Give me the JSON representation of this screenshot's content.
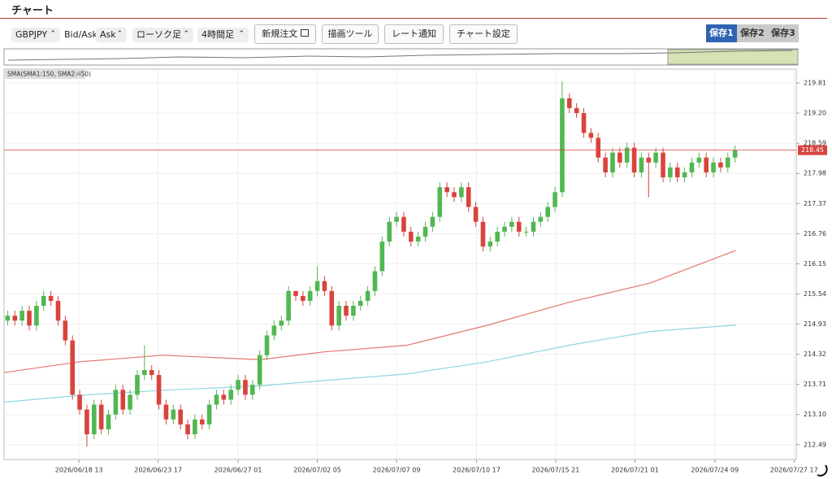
{
  "header": {
    "title": "チャート"
  },
  "toolbar": {
    "symbol": "GBPJPY",
    "bid_ask_label": "Bid/Ask",
    "bid_ask": "Ask",
    "chart_kind": "ローソク足",
    "timeframe": "4時間足",
    "buttons": [
      "新規注文",
      "描画ツール",
      "レート通知",
      "チャート設定"
    ],
    "tabs": [
      "保存1",
      "保存2",
      "保存3"
    ]
  },
  "chart_data": {
    "type": "candlestick",
    "indicator_label": "SMA(SMA1:150, SMA2:450)",
    "up_color": "#52b752",
    "down_color": "#d9433d",
    "grid": true,
    "open": [
      215.0,
      215.1,
      215.0,
      215.2,
      214.9,
      215.3,
      215.5,
      215.4,
      215.0,
      214.6,
      213.5,
      213.2,
      212.7,
      213.3,
      212.8,
      213.1,
      213.6,
      213.2,
      213.5,
      213.9,
      214.0,
      213.9,
      213.3,
      213.0,
      213.2,
      212.9,
      212.7,
      213.0,
      212.9,
      213.3,
      213.5,
      213.4,
      213.6,
      213.8,
      213.5,
      213.7,
      214.3,
      214.7,
      214.9,
      215.0,
      215.6,
      215.5,
      215.4,
      215.6,
      215.8,
      215.6,
      214.9,
      215.3,
      215.1,
      215.3,
      215.4,
      215.6,
      216.0,
      216.6,
      217.0,
      217.1,
      216.8,
      216.6,
      216.7,
      216.9,
      217.1,
      217.7,
      217.6,
      217.5,
      217.7,
      217.3,
      217.0,
      216.5,
      216.6,
      216.8,
      216.9,
      217.0,
      216.8,
      216.8,
      217.0,
      217.1,
      217.3,
      217.6,
      219.5,
      219.3,
      219.2,
      218.8,
      218.7,
      218.3,
      218.0,
      218.4,
      218.2,
      218.5,
      218.0,
      218.3,
      218.2,
      218.4,
      217.9,
      218.1,
      217.9,
      218.0,
      218.2,
      218.3,
      218.0,
      218.2,
      218.1,
      218.3
    ],
    "high": [
      215.2,
      215.2,
      215.3,
      215.3,
      215.4,
      215.6,
      215.6,
      215.5,
      215.1,
      214.7,
      213.6,
      213.3,
      213.4,
      213.4,
      213.2,
      213.7,
      213.7,
      213.6,
      214.0,
      214.5,
      214.1,
      214.0,
      213.4,
      213.3,
      213.3,
      213.0,
      213.1,
      213.1,
      213.4,
      213.6,
      213.6,
      213.7,
      213.9,
      213.9,
      213.8,
      214.4,
      214.8,
      215.0,
      215.1,
      215.7,
      215.6,
      215.6,
      215.7,
      216.1,
      215.9,
      215.7,
      215.4,
      215.4,
      215.4,
      215.5,
      215.7,
      216.1,
      216.7,
      217.1,
      217.2,
      217.2,
      216.9,
      216.8,
      217.0,
      217.2,
      217.8,
      217.8,
      217.7,
      217.8,
      217.8,
      217.4,
      217.1,
      216.7,
      216.9,
      217.0,
      217.1,
      217.1,
      216.9,
      217.1,
      217.2,
      217.4,
      217.7,
      219.85,
      219.6,
      219.4,
      219.3,
      218.9,
      218.8,
      218.4,
      218.5,
      218.5,
      218.6,
      218.6,
      218.4,
      218.4,
      218.5,
      218.5,
      218.2,
      218.2,
      218.1,
      218.3,
      218.4,
      218.4,
      218.3,
      218.3,
      218.4,
      218.55
    ],
    "low": [
      214.9,
      214.9,
      214.9,
      214.8,
      214.8,
      215.2,
      215.3,
      214.9,
      214.5,
      213.4,
      213.1,
      212.45,
      212.6,
      212.7,
      212.7,
      213.0,
      213.1,
      213.1,
      213.4,
      213.8,
      213.8,
      213.2,
      212.9,
      212.9,
      212.8,
      212.6,
      212.6,
      212.8,
      212.8,
      213.2,
      213.3,
      213.3,
      213.5,
      213.4,
      213.4,
      213.6,
      214.2,
      214.6,
      214.8,
      214.9,
      215.4,
      215.3,
      215.3,
      215.5,
      215.5,
      214.8,
      214.8,
      215.0,
      215.0,
      215.2,
      215.3,
      215.5,
      215.9,
      216.5,
      216.9,
      216.7,
      216.5,
      216.5,
      216.6,
      216.8,
      217.0,
      217.5,
      217.4,
      217.4,
      217.2,
      216.9,
      216.4,
      216.4,
      216.5,
      216.7,
      216.8,
      216.7,
      216.7,
      216.7,
      216.9,
      217.0,
      217.2,
      217.5,
      219.2,
      219.1,
      218.7,
      218.6,
      218.2,
      217.9,
      217.9,
      218.1,
      218.1,
      217.9,
      217.9,
      217.5,
      218.1,
      217.8,
      217.8,
      217.8,
      217.8,
      217.9,
      218.1,
      217.9,
      217.9,
      218.0,
      218.0,
      218.2
    ],
    "close": [
      215.1,
      215.0,
      215.2,
      214.9,
      215.3,
      215.5,
      215.4,
      215.0,
      214.6,
      213.5,
      213.2,
      212.7,
      213.3,
      212.8,
      213.1,
      213.6,
      213.2,
      213.5,
      213.9,
      214.0,
      213.9,
      213.3,
      213.0,
      213.2,
      212.9,
      212.7,
      213.0,
      212.9,
      213.3,
      213.5,
      213.4,
      213.6,
      213.8,
      213.5,
      213.7,
      214.3,
      214.7,
      214.9,
      215.0,
      215.6,
      215.5,
      215.4,
      215.6,
      215.8,
      215.6,
      214.9,
      215.3,
      215.1,
      215.3,
      215.4,
      215.6,
      216.0,
      216.6,
      217.0,
      217.1,
      216.8,
      216.6,
      216.7,
      216.9,
      217.1,
      217.7,
      217.6,
      217.5,
      217.7,
      217.3,
      217.0,
      216.5,
      216.6,
      216.8,
      216.9,
      217.0,
      216.8,
      216.8,
      217.0,
      217.1,
      217.3,
      217.6,
      219.5,
      219.3,
      219.2,
      218.8,
      218.7,
      218.3,
      218.0,
      218.4,
      218.2,
      218.5,
      218.0,
      218.3,
      218.2,
      218.4,
      217.9,
      218.1,
      217.9,
      218.0,
      218.2,
      218.3,
      218.0,
      218.2,
      218.1,
      218.3,
      218.45
    ],
    "sma": [
      {
        "color": "#e4766c",
        "x": [
          -0.5,
          10.2,
          21.5,
          35.1,
          44.1,
          55.4,
          66.7,
          77.9,
          89.2,
          101.1
        ],
        "values": [
          213.95,
          214.17,
          214.3,
          214.21,
          214.37,
          214.5,
          214.91,
          215.37,
          215.76,
          216.42
        ]
      },
      {
        "color": "#8fd6e2",
        "x": [
          -0.5,
          10.2,
          21.5,
          35.1,
          44.1,
          55.4,
          66.7,
          77.9,
          89.2,
          101.1
        ],
        "values": [
          213.35,
          213.49,
          213.59,
          213.68,
          213.79,
          213.92,
          214.17,
          214.5,
          214.78,
          214.91
        ]
      }
    ],
    "last_price": 218.45,
    "last_price_color": "#d9433d",
    "xlim": [
      -0.5,
      109.5
    ],
    "xticks": [
      {
        "value": 9.9,
        "label": "2026/06/18 13"
      },
      {
        "value": 20.9,
        "label": "2026/06/23 17"
      },
      {
        "value": 32.0,
        "label": "2026/06/27 01"
      },
      {
        "value": 43.0,
        "label": "2026/07/02 05"
      },
      {
        "value": 54.0,
        "label": "2026/07/07 09"
      },
      {
        "value": 65.1,
        "label": "2026/07/10 17"
      },
      {
        "value": 76.1,
        "label": "2026/07/15 21"
      },
      {
        "value": 87.1,
        "label": "2026/07/21 01"
      },
      {
        "value": 98.2,
        "label": "2026/07/24 09"
      },
      {
        "value": 109.2,
        "label": "2026/07/27 17"
      }
    ],
    "ylim": [
      212.19,
      220.09
    ],
    "yticks": [
      219.81,
      {
        "value": 219.2,
        "label": "219.20"
      },
      218.59,
      217.98,
      217.37,
      216.76,
      216.15,
      215.54,
      214.93,
      214.32,
      213.71,
      {
        "value": 213.1,
        "label": "213.10"
      },
      212.49
    ]
  }
}
